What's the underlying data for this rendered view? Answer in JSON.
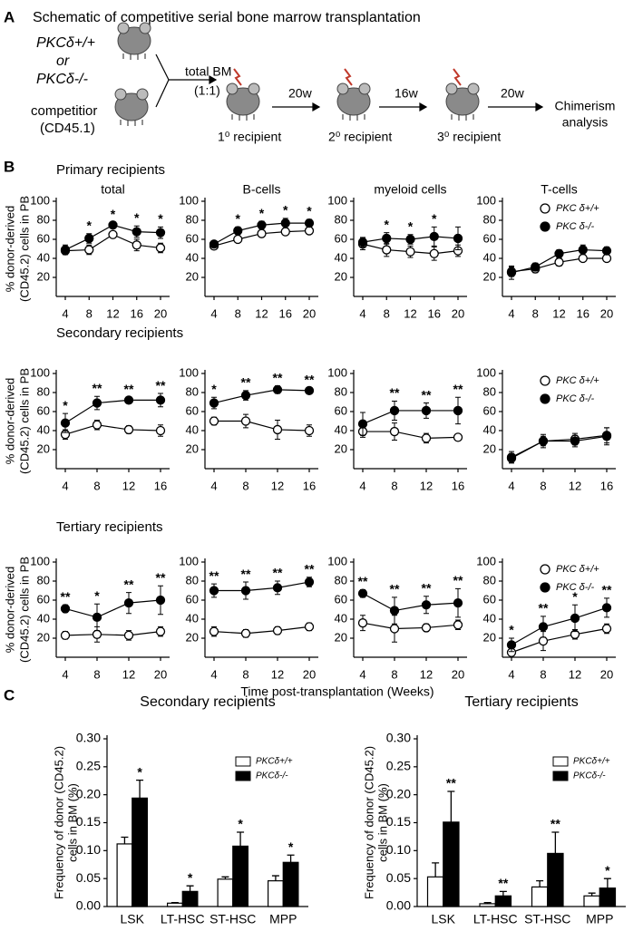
{
  "panel_labels": [
    "A",
    "B",
    "C"
  ],
  "schematic": {
    "title": "Schematic of competitive serial bone marrow transplantation",
    "genotype_wt": "PKCδ+/+",
    "or": "or",
    "genotype_ko": "PKCδ-/-",
    "competitor": [
      "competitior",
      "(CD45.1)"
    ],
    "mix": [
      "total BM",
      "(1:1)"
    ],
    "recipients": [
      "1⁰ recipient",
      "2⁰ recipient",
      "3⁰ recipient"
    ],
    "intervals": [
      "20w",
      "16w",
      "20w"
    ],
    "endpoint": [
      "Chimerism",
      "analysis"
    ]
  },
  "panel_b": {
    "rows": [
      "Primary recipients",
      "Secondary recipients",
      "Tertiary recipients"
    ],
    "ylabel": [
      "% donor-derived",
      "(CD45.2) cells in PB"
    ],
    "xlabel": "Time post-transplantation (Weeks)"
  },
  "chart_data": [
    {
      "type": "line",
      "title": "total",
      "categories": [
        "4",
        "8",
        "12",
        "16",
        "20"
      ],
      "ylim": [
        0,
        100
      ],
      "yticks": [
        20,
        40,
        60,
        80,
        100
      ],
      "series": [
        {
          "color": "#ffffff",
          "values": [
            48,
            49,
            65,
            54,
            51
          ],
          "errors": [
            4,
            5,
            3,
            6,
            5
          ]
        },
        {
          "color": "#000000",
          "values": [
            49,
            61,
            75,
            68,
            67
          ],
          "errors": [
            5,
            5,
            3,
            6,
            6
          ]
        }
      ],
      "significance": [
        null,
        "*",
        "*",
        "*",
        "*"
      ]
    },
    {
      "type": "line",
      "title": "B-cells",
      "categories": [
        "4",
        "8",
        "12",
        "16",
        "20"
      ],
      "ylim": [
        0,
        100
      ],
      "yticks": [
        20,
        40,
        60,
        80,
        100
      ],
      "series": [
        {
          "color": "#ffffff",
          "values": [
            53,
            60,
            66,
            68,
            69
          ],
          "errors": [
            3,
            3,
            3,
            3,
            3
          ]
        },
        {
          "color": "#000000",
          "values": [
            55,
            69,
            75,
            77,
            77
          ],
          "errors": [
            3,
            4,
            4,
            5,
            4
          ]
        }
      ],
      "significance": [
        null,
        "*",
        "*",
        "*",
        "*"
      ]
    },
    {
      "type": "line",
      "title": "myeloid cells",
      "categories": [
        "4",
        "8",
        "12",
        "16",
        "20"
      ],
      "ylim": [
        0,
        100
      ],
      "yticks": [
        20,
        40,
        60,
        80,
        100
      ],
      "series": [
        {
          "color": "#ffffff",
          "values": [
            55,
            49,
            47,
            45,
            48
          ],
          "errors": [
            6,
            7,
            6,
            7,
            6
          ]
        },
        {
          "color": "#000000",
          "values": [
            57,
            61,
            60,
            63,
            61
          ],
          "errors": [
            5,
            6,
            5,
            10,
            12
          ]
        }
      ],
      "significance": [
        null,
        "*",
        "*",
        "*",
        null
      ]
    },
    {
      "type": "line",
      "title": "T-cells",
      "categories": [
        "4",
        "8",
        "12",
        "16",
        "20"
      ],
      "ylim": [
        0,
        100
      ],
      "yticks": [
        20,
        40,
        60,
        80,
        100
      ],
      "legend": "upper right",
      "series": [
        {
          "name": "PKC δ+/+",
          "color": "#ffffff",
          "values": [
            26,
            29,
            36,
            40,
            40
          ],
          "errors": [
            5,
            4,
            4,
            3,
            3
          ]
        },
        {
          "name": "PKC δ-/-",
          "color": "#000000",
          "values": [
            25,
            31,
            45,
            49,
            48
          ],
          "errors": [
            7,
            4,
            4,
            5,
            4
          ]
        }
      ]
    },
    {
      "type": "line",
      "categories": [
        "4",
        "8",
        "12",
        "16"
      ],
      "ylim": [
        0,
        100
      ],
      "yticks": [
        20,
        40,
        60,
        80,
        100
      ],
      "series": [
        {
          "color": "#ffffff",
          "values": [
            36,
            46,
            41,
            40
          ],
          "errors": [
            5,
            5,
            4,
            6
          ]
        },
        {
          "color": "#000000",
          "values": [
            48,
            69,
            72,
            72
          ],
          "errors": [
            10,
            7,
            3,
            7
          ]
        }
      ],
      "significance": [
        "*",
        "**",
        "**",
        "**"
      ]
    },
    {
      "type": "line",
      "categories": [
        "4",
        "8",
        "12",
        "16"
      ],
      "ylim": [
        0,
        100
      ],
      "yticks": [
        20,
        40,
        60,
        80,
        100
      ],
      "series": [
        {
          "color": "#ffffff",
          "values": [
            50,
            50,
            41,
            40
          ],
          "errors": [
            4,
            7,
            10,
            6
          ]
        },
        {
          "color": "#000000",
          "values": [
            69,
            77,
            83,
            82
          ],
          "errors": [
            6,
            5,
            4,
            3
          ]
        }
      ],
      "significance": [
        "*",
        "**",
        "**",
        "**"
      ]
    },
    {
      "type": "line",
      "categories": [
        "4",
        "8",
        "12",
        "16"
      ],
      "ylim": [
        0,
        100
      ],
      "yticks": [
        20,
        40,
        60,
        80,
        100
      ],
      "series": [
        {
          "color": "#ffffff",
          "values": [
            39,
            39,
            32,
            33
          ],
          "errors": [
            6,
            9,
            5,
            3
          ]
        },
        {
          "color": "#000000",
          "values": [
            47,
            61,
            61,
            61
          ],
          "errors": [
            12,
            10,
            8,
            14
          ]
        }
      ],
      "significance": [
        null,
        "**",
        "**",
        "**"
      ]
    },
    {
      "type": "line",
      "categories": [
        "4",
        "8",
        "12",
        "16"
      ],
      "ylim": [
        0,
        100
      ],
      "yticks": [
        20,
        40,
        60,
        80,
        100
      ],
      "legend": "upper right",
      "series": [
        {
          "name": "PKC δ+/+",
          "color": "#ffffff",
          "values": [
            11,
            29,
            31,
            35
          ],
          "errors": [
            5,
            5,
            6,
            8
          ]
        },
        {
          "name": "PKC δ-/-",
          "color": "#000000",
          "values": [
            12,
            29,
            29,
            34
          ],
          "errors": [
            6,
            7,
            6,
            9
          ]
        }
      ]
    },
    {
      "type": "line",
      "categories": [
        "4",
        "8",
        "12",
        "20"
      ],
      "ylim": [
        0,
        100
      ],
      "yticks": [
        20,
        40,
        60,
        80,
        100
      ],
      "series": [
        {
          "color": "#ffffff",
          "values": [
            23,
            24,
            23,
            27
          ],
          "errors": [
            4,
            8,
            5,
            5
          ]
        },
        {
          "color": "#000000",
          "values": [
            51,
            42,
            57,
            60
          ],
          "errors": [
            4,
            14,
            11,
            15
          ]
        }
      ],
      "significance": [
        "**",
        "*",
        "**",
        "**"
      ]
    },
    {
      "type": "line",
      "categories": [
        "4",
        "8",
        "12",
        "20"
      ],
      "ylim": [
        0,
        100
      ],
      "yticks": [
        20,
        40,
        60,
        80,
        100
      ],
      "series": [
        {
          "color": "#ffffff",
          "values": [
            27,
            25,
            28,
            32
          ],
          "errors": [
            5,
            4,
            4,
            4
          ]
        },
        {
          "color": "#000000",
          "values": [
            70,
            70,
            73,
            79
          ],
          "errors": [
            7,
            9,
            7,
            5
          ]
        }
      ],
      "significance": [
        "**",
        "**",
        "**",
        "**"
      ]
    },
    {
      "type": "line",
      "categories": [
        "4",
        "8",
        "12",
        "20"
      ],
      "ylim": [
        0,
        100
      ],
      "yticks": [
        20,
        40,
        60,
        80,
        100
      ],
      "series": [
        {
          "color": "#ffffff",
          "values": [
            36,
            30,
            31,
            34
          ],
          "errors": [
            8,
            14,
            4,
            5
          ]
        },
        {
          "color": "#000000",
          "values": [
            67,
            49,
            55,
            57
          ],
          "errors": [
            4,
            14,
            9,
            15
          ]
        }
      ],
      "significance": [
        "**",
        "**",
        "**",
        "**"
      ]
    },
    {
      "type": "line",
      "categories": [
        "4",
        "8",
        "12",
        "20"
      ],
      "ylim": [
        0,
        100
      ],
      "yticks": [
        20,
        40,
        60,
        80,
        100
      ],
      "legend": "upper right",
      "series": [
        {
          "name": "PKC δ+/+",
          "color": "#ffffff",
          "values": [
            5,
            17,
            24,
            30
          ],
          "errors": [
            5,
            10,
            5,
            5
          ]
        },
        {
          "name": "PKC δ-/-",
          "color": "#000000",
          "values": [
            13,
            32,
            41,
            52
          ],
          "errors": [
            7,
            11,
            14,
            10
          ]
        }
      ],
      "significance": [
        "*",
        "**",
        "*",
        "**"
      ]
    },
    {
      "type": "bar",
      "title": "Secondary recipients",
      "ylabel": [
        "Frequency of donor (CD45.2)",
        "cells in BM (%)"
      ],
      "categories": [
        "LSK",
        "LT-HSC",
        "ST-HSC",
        "MPP"
      ],
      "ylim": [
        0,
        0.3
      ],
      "legend": "upper right",
      "yticks": [
        {
          "value": 0,
          "label": "0.00"
        },
        {
          "value": 0.05,
          "label": "0.05"
        },
        {
          "value": 0.1,
          "label": "0.10"
        },
        {
          "value": 0.15,
          "label": "0.15"
        },
        {
          "value": 0.2,
          "label": "0.20"
        },
        {
          "value": 0.25,
          "label": "0.25"
        },
        {
          "value": 0.3,
          "label": "0.30"
        }
      ],
      "series": [
        {
          "name": "PKCδ+/+",
          "color": "#ffffff",
          "values": [
            0.112,
            0.006,
            0.049,
            0.046
          ],
          "errors": [
            0.012,
            0.001,
            0.004,
            0.009
          ]
        },
        {
          "name": "PKCδ-/-",
          "color": "#000000",
          "values": [
            0.194,
            0.027,
            0.108,
            0.079
          ],
          "errors": [
            0.032,
            0.01,
            0.025,
            0.013
          ]
        }
      ],
      "significance": [
        "*",
        "*",
        "*",
        "*"
      ]
    },
    {
      "type": "bar",
      "title": "Tertiary recipients",
      "ylabel": [
        "Frequency of donor (CD45.2)",
        "cells in BM (%)"
      ],
      "categories": [
        "LSK",
        "LT-HSC",
        "ST-HSC",
        "MPP"
      ],
      "ylim": [
        0,
        0.3
      ],
      "legend": "upper right",
      "yticks": [
        {
          "value": 0,
          "label": "0.00"
        },
        {
          "value": 0.05,
          "label": "0.05"
        },
        {
          "value": 0.1,
          "label": "0.10"
        },
        {
          "value": 0.15,
          "label": "0.15"
        },
        {
          "value": 0.2,
          "label": "0.20"
        },
        {
          "value": 0.25,
          "label": "0.25"
        },
        {
          "value": 0.3,
          "label": "0.30"
        }
      ],
      "series": [
        {
          "name": "PKCδ+/+",
          "color": "#ffffff",
          "values": [
            0.053,
            0.005,
            0.035,
            0.019
          ],
          "errors": [
            0.025,
            0.002,
            0.011,
            0.005
          ]
        },
        {
          "name": "PKCδ-/-",
          "color": "#000000",
          "values": [
            0.151,
            0.019,
            0.095,
            0.033
          ],
          "errors": [
            0.055,
            0.008,
            0.038,
            0.017
          ]
        }
      ],
      "significance": [
        "**",
        "**",
        "**",
        "*"
      ]
    }
  ]
}
